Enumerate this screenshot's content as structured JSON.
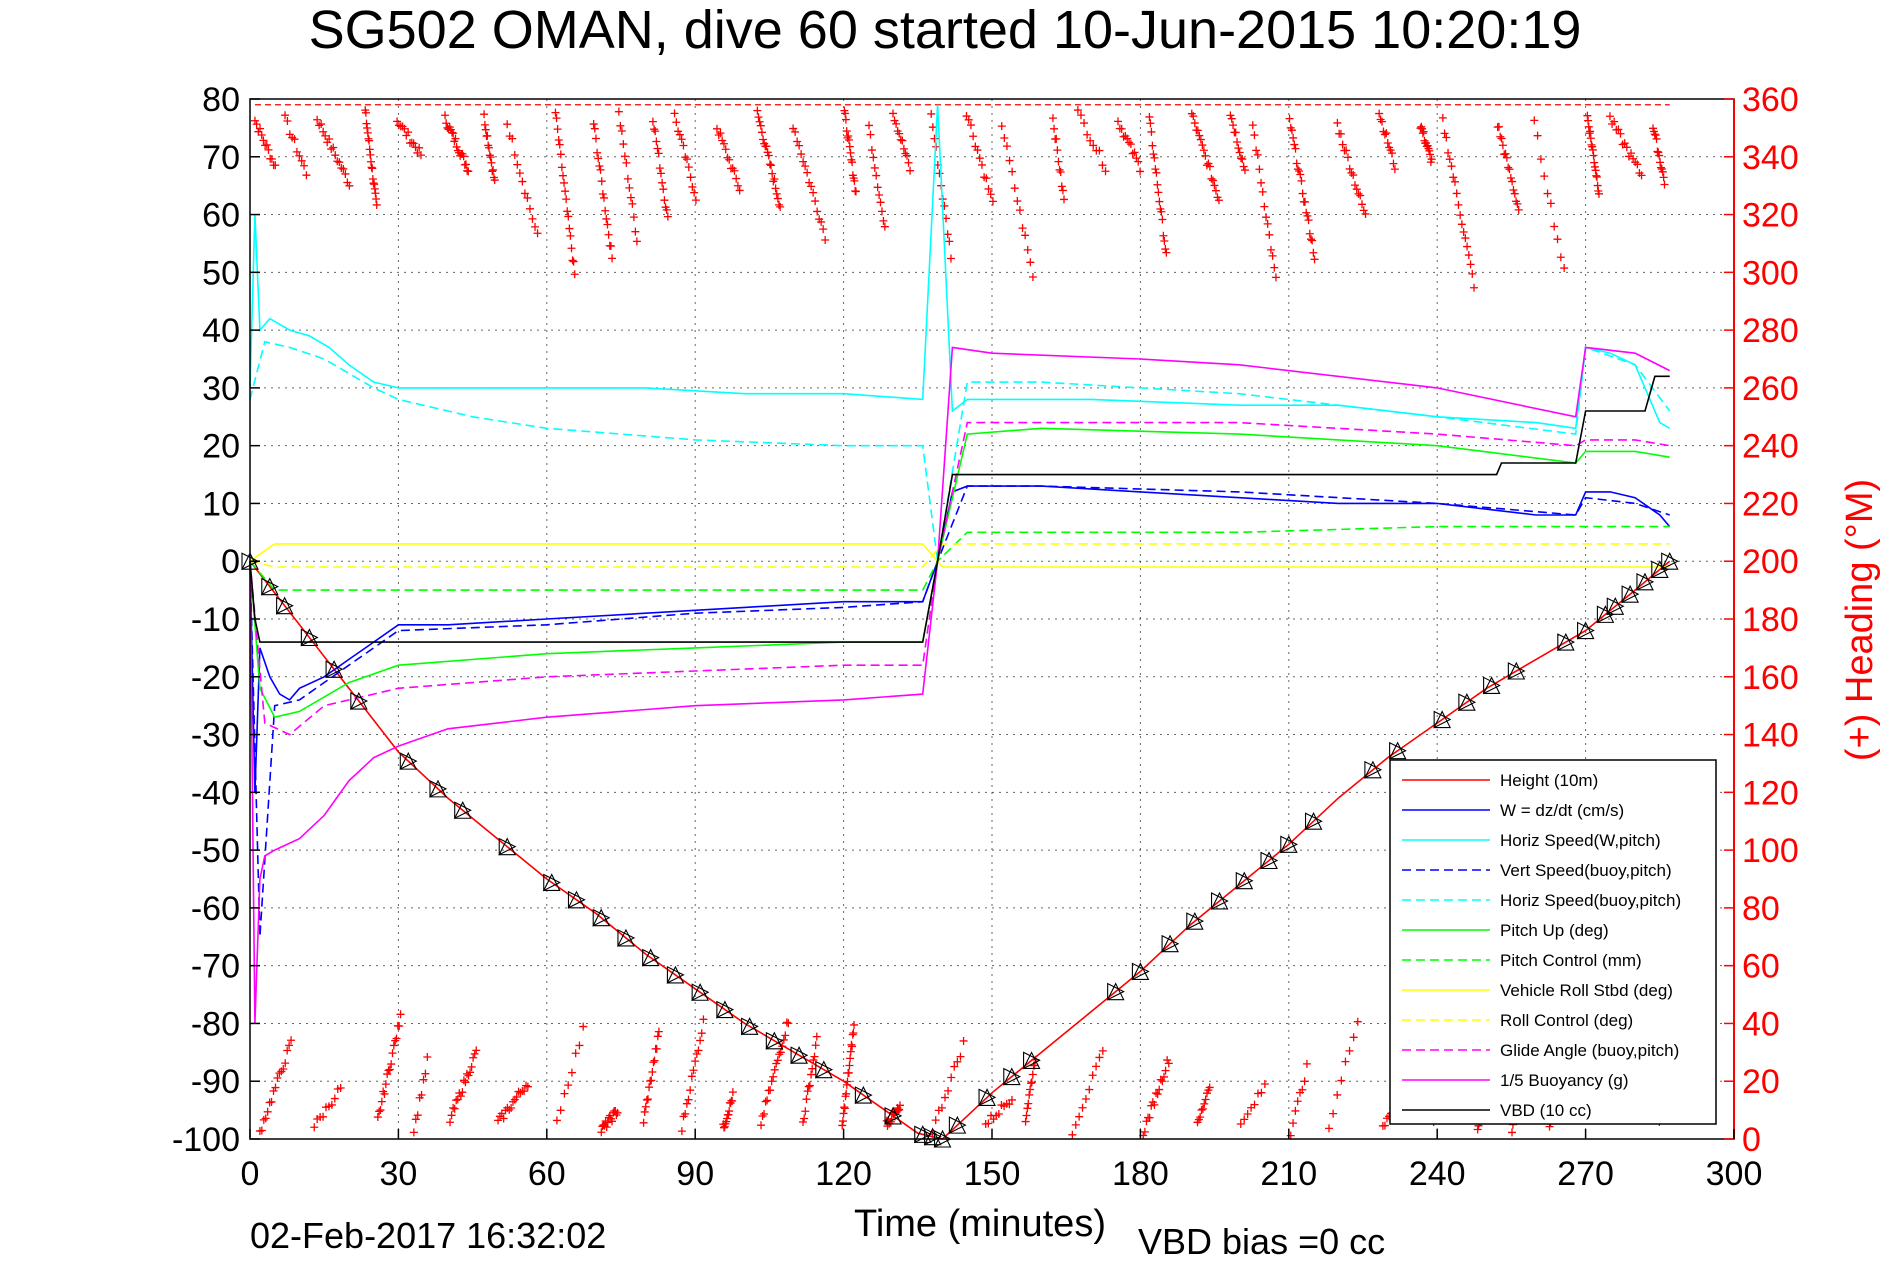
{
  "chart_data": {
    "type": "line",
    "title": "SG502 OMAN, dive 60 started 10-Jun-2015 10:20:19",
    "xlabel": "Time (minutes)",
    "ylabel": "",
    "y2label": "(+) Heading (°M)",
    "footer_left": "02-Feb-2017 16:32:02",
    "footer_right": "VBD bias =0 cc",
    "xlim": [
      0,
      300
    ],
    "ylim": [
      -100,
      80
    ],
    "y2lim": [
      0,
      360
    ],
    "grid": true,
    "legend_position": "bottom-right",
    "x_ticks": [
      "0",
      "30",
      "60",
      "90",
      "120",
      "150",
      "180",
      "210",
      "240",
      "270",
      "300"
    ],
    "y_ticks": [
      "80",
      "70",
      "60",
      "50",
      "40",
      "30",
      "20",
      "10",
      "0",
      "-10",
      "-20",
      "-30",
      "-40",
      "-50",
      "-60",
      "-70",
      "-80",
      "-90",
      "-100"
    ],
    "y2_ticks": [
      "360",
      "340",
      "320",
      "300",
      "280",
      "260",
      "240",
      "220",
      "200",
      "180",
      "160",
      "140",
      "120",
      "100",
      "80",
      "60",
      "40",
      "20",
      "0"
    ],
    "colors": {
      "height": "#ff0000",
      "w": "#0000ff",
      "horiz_speed": "#00ffff",
      "pitch": "#00ff00",
      "roll": "#ffff00",
      "glide": "#ff00ff",
      "buoyancy": "#ff00ff",
      "vbd": "#000000",
      "heading": "#ff0000"
    },
    "series": [
      {
        "name": "Height (10m)",
        "style": "solid",
        "color": "#ff0000",
        "x": [
          0,
          10,
          20,
          30,
          40,
          50,
          60,
          70,
          80,
          90,
          100,
          110,
          120,
          130,
          135,
          140,
          145,
          150,
          160,
          170,
          180,
          190,
          200,
          210,
          220,
          230,
          240,
          250,
          260,
          270,
          280,
          287
        ],
        "y": [
          0,
          -11,
          -22,
          -33,
          -41,
          -48,
          -55,
          -61,
          -68,
          -74,
          -80,
          -85,
          -90,
          -96,
          -99,
          -100,
          -96,
          -92,
          -85,
          -78,
          -71,
          -63,
          -56,
          -49,
          -41,
          -34,
          -28,
          -22,
          -17,
          -12,
          -5,
          0
        ]
      },
      {
        "name": "W = dz/dt (cm/s)",
        "style": "solid",
        "color": "#0000ff",
        "x": [
          0,
          1,
          2,
          4,
          6,
          8,
          10,
          15,
          20,
          25,
          30,
          40,
          60,
          80,
          100,
          120,
          136,
          139,
          142,
          145,
          150,
          160,
          180,
          200,
          220,
          240,
          260,
          268,
          270,
          275,
          280,
          285,
          287
        ],
        "y": [
          0,
          -40,
          -15,
          -20,
          -23,
          -24,
          -22,
          -20,
          -17,
          -14,
          -11,
          -11,
          -10,
          -9,
          -8,
          -7,
          -7,
          0,
          12,
          13,
          13,
          13,
          12,
          11,
          10,
          10,
          8,
          8,
          12,
          12,
          11,
          8,
          6
        ]
      },
      {
        "name": "Horiz Speed(W,pitch)",
        "style": "solid",
        "color": "#00ffff",
        "x": [
          0,
          1,
          2,
          4,
          8,
          12,
          16,
          20,
          25,
          30,
          40,
          60,
          80,
          100,
          120,
          136,
          139,
          142,
          145,
          150,
          170,
          200,
          220,
          240,
          260,
          268,
          270,
          275,
          280,
          285,
          287
        ],
        "y": [
          30,
          60,
          40,
          42,
          40,
          39,
          37,
          34,
          31,
          30,
          30,
          30,
          30,
          29,
          29,
          28,
          79,
          26,
          28,
          28,
          28,
          27,
          27,
          25,
          24,
          23,
          37,
          36,
          34,
          24,
          23
        ]
      },
      {
        "name": "Vert Speed(buoy,pitch)",
        "style": "dashed",
        "color": "#0000ff",
        "x": [
          0,
          2,
          5,
          10,
          20,
          30,
          60,
          90,
          120,
          136,
          139,
          145,
          160,
          200,
          240,
          268,
          270,
          280,
          287
        ],
        "y": [
          0,
          -65,
          -25,
          -24,
          -18,
          -12,
          -11,
          -9,
          -8,
          -7,
          0,
          13,
          13,
          12,
          10,
          8,
          11,
          10,
          8
        ]
      },
      {
        "name": "Horiz Speed(buoy,pitch)",
        "style": "dashed",
        "color": "#00ffff",
        "x": [
          0,
          3,
          8,
          15,
          25,
          30,
          45,
          60,
          90,
          120,
          136,
          139,
          145,
          160,
          200,
          240,
          268,
          270,
          280,
          287
        ],
        "y": [
          28,
          38,
          37,
          35,
          30,
          28,
          25,
          23,
          21,
          20,
          20,
          0,
          31,
          31,
          29,
          25,
          22,
          37,
          34,
          26
        ]
      },
      {
        "name": "Pitch Up (deg)",
        "style": "solid",
        "color": "#00ff00",
        "x": [
          0,
          2,
          5,
          10,
          20,
          30,
          60,
          90,
          120,
          136,
          139,
          145,
          160,
          200,
          240,
          268,
          270,
          280,
          287
        ],
        "y": [
          0,
          -22,
          -27,
          -26,
          -21,
          -18,
          -16,
          -15,
          -14,
          -14,
          0,
          22,
          23,
          22,
          20,
          17,
          19,
          19,
          18
        ]
      },
      {
        "name": "Pitch Control (mm)",
        "style": "dashed",
        "color": "#00ff00",
        "x": [
          0,
          5,
          10,
          30,
          60,
          90,
          120,
          136,
          139,
          145,
          200,
          240,
          287
        ],
        "y": [
          0,
          -5,
          -5,
          -5,
          -5,
          -5,
          -5,
          -5,
          0,
          5,
          5,
          6,
          6
        ]
      },
      {
        "name": "Vehicle Roll Stbd (deg)",
        "style": "solid",
        "color": "#ffff00",
        "x": [
          0,
          5,
          10,
          30,
          60,
          90,
          120,
          136,
          140,
          150,
          200,
          240,
          287
        ],
        "y": [
          0,
          3,
          3,
          3,
          3,
          3,
          3,
          3,
          -1,
          -1,
          -1,
          -1,
          -1
        ]
      },
      {
        "name": "Roll Control (deg)",
        "style": "dashed",
        "color": "#ffff00",
        "x": [
          0,
          5,
          10,
          60,
          120,
          136,
          140,
          200,
          287
        ],
        "y": [
          0,
          -1,
          -1,
          -1,
          -1,
          -1,
          3,
          3,
          3
        ]
      },
      {
        "name": "Glide Angle (buoy,pitch)",
        "style": "dashed",
        "color": "#ff00ff",
        "x": [
          0,
          3,
          8,
          15,
          30,
          60,
          90,
          120,
          136,
          139,
          145,
          160,
          200,
          240,
          268,
          270,
          280,
          287
        ],
        "y": [
          0,
          -28,
          -30,
          -25,
          -22,
          -20,
          -19,
          -18,
          -18,
          0,
          24,
          24,
          24,
          22,
          20,
          21,
          21,
          20
        ]
      },
      {
        "name": "1/5 Buoyancy (g)",
        "style": "solid",
        "color": "#ff00ff",
        "x": [
          0,
          1,
          2,
          3,
          5,
          10,
          15,
          20,
          25,
          30,
          40,
          60,
          90,
          120,
          136,
          139,
          142,
          150,
          180,
          200,
          240,
          268,
          270,
          280,
          287
        ],
        "y": [
          0,
          -80,
          -55,
          -51,
          -50,
          -48,
          -44,
          -38,
          -34,
          -32,
          -29,
          -27,
          -25,
          -24,
          -23,
          0,
          37,
          36,
          35,
          34,
          30,
          25,
          37,
          36,
          33
        ]
      },
      {
        "name": "VBD (10 cc)",
        "style": "solid",
        "color": "#000000",
        "x": [
          0,
          1,
          2,
          136,
          139,
          142,
          200,
          240,
          252,
          253,
          268,
          270,
          282,
          284,
          287
        ],
        "y": [
          0,
          -10,
          -14,
          -14,
          0,
          15,
          15,
          15,
          15,
          17,
          17,
          26,
          26,
          32,
          32
        ]
      }
    ]
  }
}
